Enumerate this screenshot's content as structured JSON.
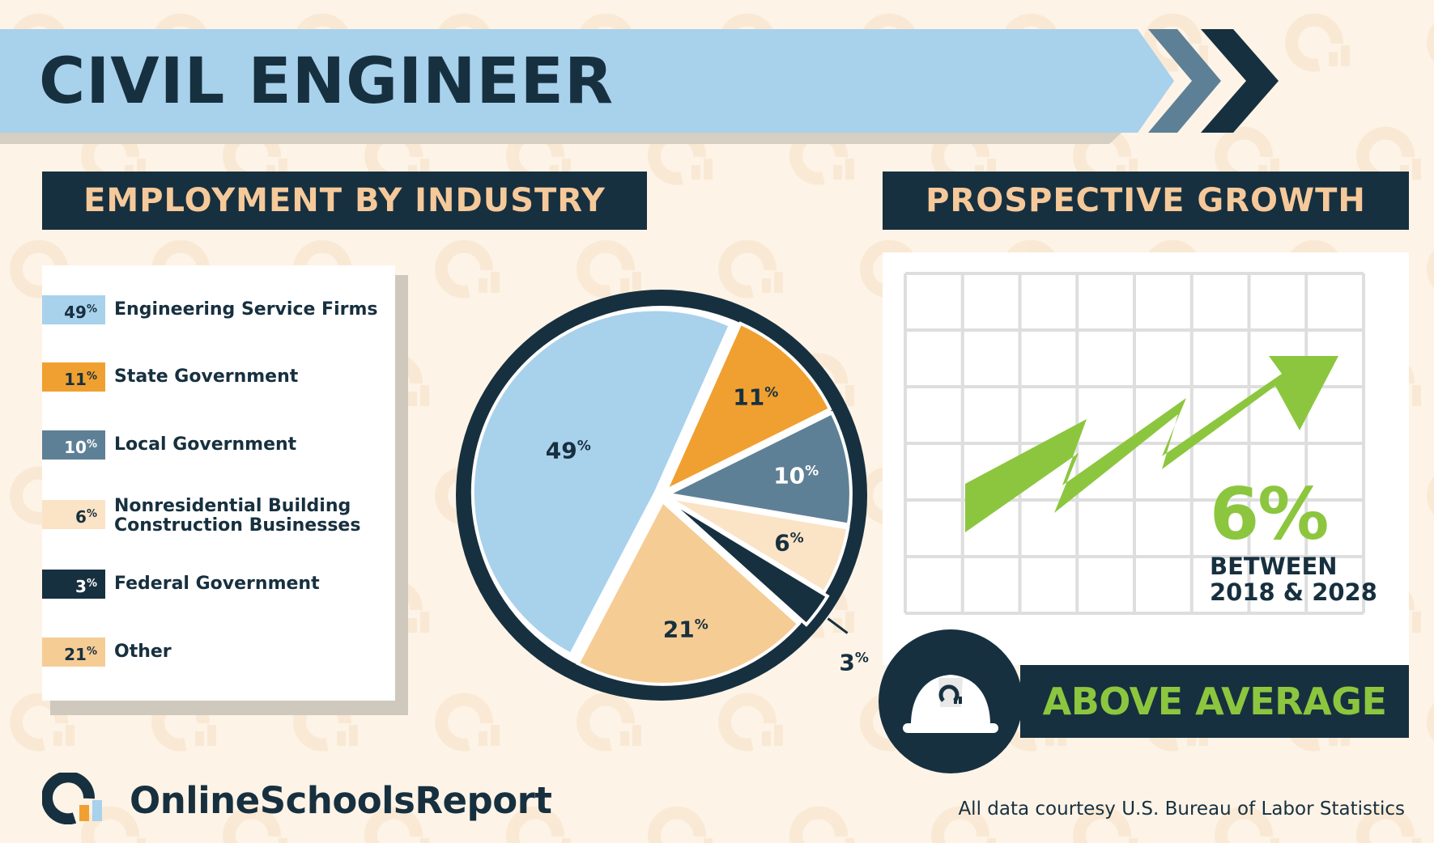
{
  "title": "CIVIL ENGINEER",
  "employment": {
    "header": "EMPLOYMENT BY INDUSTRY"
  },
  "growth": {
    "header": "PROSPECTIVE GROWTH",
    "value": "6%",
    "period": "BETWEEN 2018 & 2028",
    "rating": "ABOVE AVERAGE",
    "arrow_color": "#8cc63f"
  },
  "chart_data": {
    "type": "pie",
    "title": "",
    "slices": [
      {
        "label": "Engineering Service Firms",
        "value": 49,
        "color": "#a8d1ec",
        "text_color": "#17303f"
      },
      {
        "label": "State Government",
        "value": 11,
        "color": "#f0a030",
        "text_color": "#17303f"
      },
      {
        "label": "Local Government",
        "value": 10,
        "color": "#5e8096",
        "text_color": "#ffffff"
      },
      {
        "label": "Nonresidential Building Construction Businesses",
        "value": 6,
        "color": "#fbe3c6",
        "text_color": "#17303f"
      },
      {
        "label": "Federal Government",
        "value": 3,
        "color": "#17303f",
        "text_color": "#17303f"
      },
      {
        "label": "Other",
        "value": 21,
        "color": "#f6cc95",
        "text_color": "#17303f"
      }
    ],
    "value_suffix": "%",
    "legend_position": "left"
  },
  "footer": {
    "brand": "OnlineSchoolsReport",
    "source": "All data courtesy U.S. Bureau of Labor Statistics"
  },
  "icons": {
    "logo": "online-schools-report-logo-icon",
    "helmet": "hard-hat-icon",
    "arrow": "growth-arrow-icon",
    "chevrons": "double-chevron-icon"
  }
}
